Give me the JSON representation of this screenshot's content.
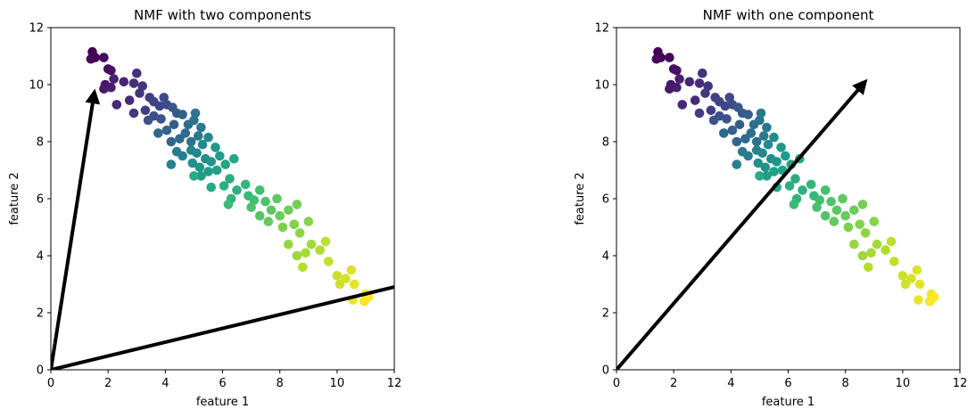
{
  "chart_data": [
    {
      "type": "scatter",
      "title": "NMF with two components",
      "xlabel": "feature 1",
      "ylabel": "feature 2",
      "xlim": [
        0,
        12
      ],
      "ylim": [
        0,
        12
      ],
      "xticks": [
        "0",
        "2",
        "4",
        "6",
        "8",
        "10",
        "12"
      ],
      "yticks": [
        "0",
        "2",
        "4",
        "6",
        "8",
        "10",
        "12"
      ],
      "grid": false,
      "colormap": "viridis",
      "arrows": [
        {
          "from": [
            0,
            0
          ],
          "to": [
            1.5,
            9.6
          ]
        },
        {
          "from": [
            0,
            0
          ],
          "to": [
            12.6,
            3.05
          ]
        }
      ]
    },
    {
      "type": "scatter",
      "title": "NMF with one component",
      "xlabel": "feature 1",
      "ylabel": "feature 2",
      "xlim": [
        0,
        12
      ],
      "ylim": [
        0,
        12
      ],
      "xticks": [
        "0",
        "2",
        "4",
        "6",
        "8",
        "10",
        "12"
      ],
      "yticks": [
        "0",
        "2",
        "4",
        "6",
        "8",
        "10",
        "12"
      ],
      "grid": false,
      "colormap": "viridis",
      "arrows": [
        {
          "from": [
            0,
            0
          ],
          "to": [
            8.6,
            10.0
          ]
        }
      ]
    }
  ],
  "points": [
    [
      1.45,
      11.15,
      0.0
    ],
    [
      1.55,
      10.95,
      0.01
    ],
    [
      1.85,
      10.95,
      0.02
    ],
    [
      1.4,
      10.9,
      0.02
    ],
    [
      2.0,
      10.55,
      0.04
    ],
    [
      2.1,
      10.5,
      0.05
    ],
    [
      1.9,
      10.0,
      0.06
    ],
    [
      1.85,
      9.85,
      0.07
    ],
    [
      2.1,
      9.9,
      0.08
    ],
    [
      2.2,
      10.2,
      0.09
    ],
    [
      2.55,
      10.1,
      0.1
    ],
    [
      2.3,
      9.3,
      0.11
    ],
    [
      2.75,
      9.45,
      0.12
    ],
    [
      2.9,
      10.05,
      0.13
    ],
    [
      3.0,
      10.4,
      0.14
    ],
    [
      3.2,
      9.95,
      0.15
    ],
    [
      3.1,
      9.7,
      0.16
    ],
    [
      2.9,
      9.0,
      0.17
    ],
    [
      3.3,
      9.1,
      0.18
    ],
    [
      3.45,
      9.55,
      0.19
    ],
    [
      3.6,
      9.4,
      0.2
    ],
    [
      3.8,
      9.25,
      0.21
    ],
    [
      3.95,
      9.55,
      0.22
    ],
    [
      4.05,
      9.3,
      0.23
    ],
    [
      3.6,
      8.9,
      0.24
    ],
    [
      3.4,
      8.75,
      0.25
    ],
    [
      3.85,
      8.8,
      0.26
    ],
    [
      4.25,
      9.2,
      0.27
    ],
    [
      4.4,
      9.0,
      0.28
    ],
    [
      4.3,
      8.6,
      0.29
    ],
    [
      4.6,
      8.95,
      0.3
    ],
    [
      4.05,
      8.4,
      0.31
    ],
    [
      4.2,
      8.0,
      0.32
    ],
    [
      3.75,
      8.3,
      0.33
    ],
    [
      4.5,
      8.1,
      0.34
    ],
    [
      4.8,
      8.6,
      0.35
    ],
    [
      4.7,
      8.3,
      0.36
    ],
    [
      4.9,
      8.0,
      0.37
    ],
    [
      5.0,
      8.75,
      0.38
    ],
    [
      5.05,
      9.0,
      0.39
    ],
    [
      5.25,
      8.5,
      0.4
    ],
    [
      5.15,
      8.2,
      0.41
    ],
    [
      4.4,
      7.65,
      0.42
    ],
    [
      4.6,
      7.5,
      0.43
    ],
    [
      4.2,
      7.2,
      0.44
    ],
    [
      4.9,
      7.7,
      0.45
    ],
    [
      5.1,
      7.6,
      0.46
    ],
    [
      5.3,
      7.9,
      0.47
    ],
    [
      5.5,
      8.15,
      0.48
    ],
    [
      5.4,
      7.4,
      0.49
    ],
    [
      4.95,
      7.25,
      0.5
    ],
    [
      5.2,
      7.1,
      0.51
    ],
    [
      5.6,
      7.3,
      0.52
    ],
    [
      5.75,
      7.8,
      0.53
    ],
    [
      5.9,
      7.5,
      0.54
    ],
    [
      5.25,
      6.8,
      0.55
    ],
    [
      5.5,
      6.95,
      0.56
    ],
    [
      5.8,
      7.0,
      0.57
    ],
    [
      6.1,
      7.2,
      0.58
    ],
    [
      6.4,
      7.4,
      0.59
    ],
    [
      5.6,
      6.4,
      0.6
    ],
    [
      5.0,
      6.8,
      0.61
    ],
    [
      6.25,
      6.7,
      0.62
    ],
    [
      6.05,
      6.45,
      0.63
    ],
    [
      6.5,
      6.3,
      0.64
    ],
    [
      6.3,
      6.0,
      0.65
    ],
    [
      6.8,
      6.5,
      0.66
    ],
    [
      6.9,
      6.1,
      0.67
    ],
    [
      6.2,
      5.8,
      0.68
    ],
    [
      7.1,
      5.95,
      0.69
    ],
    [
      7.3,
      6.3,
      0.7
    ],
    [
      7.0,
      5.7,
      0.71
    ],
    [
      7.5,
      5.9,
      0.72
    ],
    [
      7.3,
      5.4,
      0.73
    ],
    [
      7.7,
      5.6,
      0.74
    ],
    [
      7.9,
      6.0,
      0.75
    ],
    [
      7.6,
      5.2,
      0.76
    ],
    [
      8.0,
      5.4,
      0.77
    ],
    [
      8.3,
      5.6,
      0.78
    ],
    [
      8.6,
      5.8,
      0.79
    ],
    [
      8.1,
      5.0,
      0.8
    ],
    [
      8.5,
      5.1,
      0.81
    ],
    [
      9.0,
      5.2,
      0.82
    ],
    [
      8.7,
      4.8,
      0.83
    ],
    [
      8.3,
      4.4,
      0.84
    ],
    [
      8.6,
      4.0,
      0.85
    ],
    [
      9.1,
      4.4,
      0.86
    ],
    [
      8.9,
      4.1,
      0.87
    ],
    [
      9.4,
      4.2,
      0.88
    ],
    [
      8.8,
      3.6,
      0.89
    ],
    [
      9.6,
      4.5,
      0.9
    ],
    [
      9.7,
      3.8,
      0.91
    ],
    [
      10.0,
      3.3,
      0.92
    ],
    [
      10.1,
      3.0,
      0.93
    ],
    [
      10.3,
      3.2,
      0.94
    ],
    [
      10.5,
      3.5,
      0.95
    ],
    [
      10.6,
      3.0,
      0.96
    ],
    [
      10.55,
      2.45,
      0.97
    ],
    [
      11.0,
      2.65,
      0.98
    ],
    [
      10.95,
      2.4,
      0.99
    ],
    [
      11.1,
      2.55,
      1.0
    ]
  ]
}
